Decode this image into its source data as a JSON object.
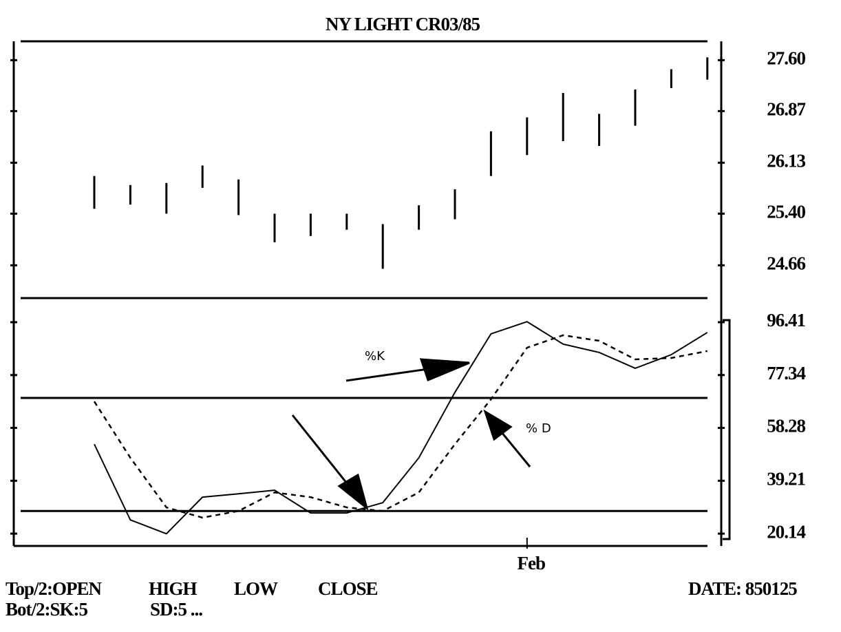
{
  "chart_data": [
    {
      "type": "range",
      "title": "NY LIGHT CR03/85",
      "high": [
        25.94,
        25.81,
        25.84,
        26.09,
        25.89,
        25.4,
        25.4,
        25.4,
        25.25,
        25.52,
        25.75,
        26.58,
        26.78,
        27.13,
        26.83,
        27.18,
        27.47,
        27.64
      ],
      "low": [
        25.47,
        25.53,
        25.4,
        25.77,
        25.38,
        24.99,
        25.08,
        25.17,
        24.61,
        25.17,
        25.32,
        25.94,
        26.24,
        26.44,
        26.37,
        26.66,
        27.2,
        27.32
      ],
      "color": "#000000",
      "ylim": [
        24.19,
        27.87
      ],
      "yticks": [
        {
          "value": 27.6,
          "label": "27.60"
        },
        26.87,
        26.13,
        {
          "value": 25.4,
          "label": "25.40"
        },
        24.66
      ]
    },
    {
      "type": "line",
      "categories": [
        null,
        null,
        null,
        null,
        null,
        null,
        null,
        null,
        null,
        null,
        null,
        null,
        "Feb",
        null,
        null,
        null,
        null,
        null
      ],
      "series": [
        {
          "name": "%K",
          "color": "#000000",
          "dash": false,
          "values": [
            52.4,
            25.1,
            20.1,
            33.3,
            34.5,
            35.8,
            27.6,
            27.6,
            31.3,
            47.5,
            71.1,
            92.2,
            96.6,
            88.5,
            85.5,
            79.8,
            84.7,
            92.7
          ]
        },
        {
          "name": "% D",
          "color": "#000000",
          "dash": true,
          "values": [
            67.8,
            47.5,
            29.6,
            25.9,
            28.3,
            35.0,
            33.3,
            29.6,
            28.3,
            35.0,
            52.4,
            68.6,
            87.2,
            91.7,
            89.7,
            83.0,
            83.5,
            86.0
          ]
        }
      ],
      "reference_lines": [
        69.1,
        28.3
      ],
      "ylim": [
        15.7,
        105.1
      ],
      "yticks": [
        96.41,
        77.34,
        58.28,
        39.21,
        20.14
      ]
    }
  ],
  "footer": {
    "top": "Top/2:OPEN",
    "high": "HIGH",
    "low": "LOW",
    "close": "CLOSE",
    "date": "DATE: 850125",
    "bot": "Bot/2:SK:5",
    "sd": "SD:5 ..."
  }
}
